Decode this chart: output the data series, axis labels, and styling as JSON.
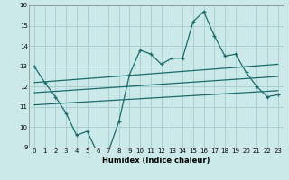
{
  "xlabel": "Humidex (Indice chaleur)",
  "xlim": [
    -0.5,
    23.5
  ],
  "ylim": [
    9,
    16
  ],
  "xticks": [
    0,
    1,
    2,
    3,
    4,
    5,
    6,
    7,
    8,
    9,
    10,
    11,
    12,
    13,
    14,
    15,
    16,
    17,
    18,
    19,
    20,
    21,
    22,
    23
  ],
  "yticks": [
    9,
    10,
    11,
    12,
    13,
    14,
    15,
    16
  ],
  "background_color": "#cce9ea",
  "grid_color": "#aacfd0",
  "line_color": "#1a6b6b",
  "main_x": [
    0,
    1,
    2,
    3,
    4,
    5,
    6,
    7,
    8,
    9,
    10,
    11,
    12,
    13,
    14,
    15,
    16,
    17,
    18,
    19,
    20,
    21,
    22,
    23
  ],
  "main_y": [
    13.0,
    12.2,
    11.5,
    10.7,
    9.6,
    9.8,
    8.7,
    8.8,
    10.3,
    12.6,
    13.8,
    13.6,
    13.1,
    13.4,
    13.4,
    15.2,
    15.7,
    14.5,
    13.5,
    13.6,
    12.7,
    12.0,
    11.5,
    11.6
  ],
  "line1_x": [
    0,
    23
  ],
  "line1_y": [
    12.2,
    13.1
  ],
  "line2_x": [
    0,
    23
  ],
  "line2_y": [
    11.7,
    12.5
  ],
  "line3_x": [
    0,
    23
  ],
  "line3_y": [
    11.1,
    11.8
  ]
}
